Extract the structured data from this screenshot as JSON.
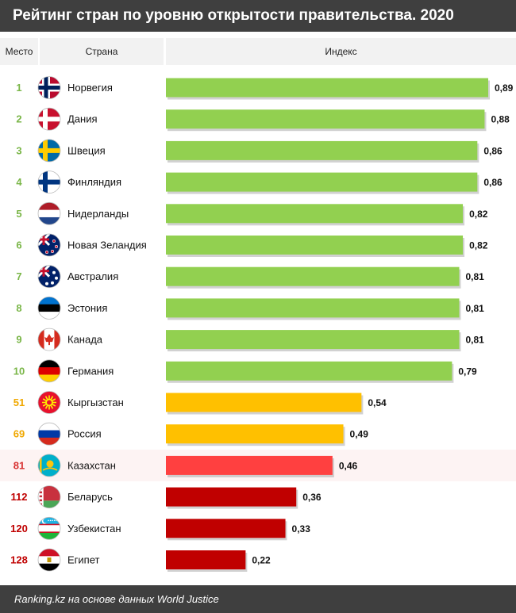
{
  "title": "Рейтинг стран по уровню открытости правительства. 2020",
  "headers": {
    "rank": "Место",
    "country": "Страна",
    "index": "Индекс"
  },
  "footer": "Ranking.kz на основе данных World Justice",
  "colors": {
    "top10": "#92d050",
    "neighbors": "#ffc000",
    "kazakhstan": "#ff4040",
    "low": "#c00000",
    "highlight_row": "#fdf3f3"
  },
  "chart_data": {
    "type": "bar",
    "orientation": "horizontal",
    "xlim": [
      0,
      0.89
    ],
    "grid": false,
    "rows": [
      {
        "rank": "1",
        "country": "Норвегия",
        "value": 0.89,
        "label": "0,89",
        "flag": "norway-flag-icon",
        "group": "top10"
      },
      {
        "rank": "2",
        "country": "Дания",
        "value": 0.88,
        "label": "0,88",
        "flag": "denmark-flag-icon",
        "group": "top10"
      },
      {
        "rank": "3",
        "country": "Швеция",
        "value": 0.86,
        "label": "0,86",
        "flag": "sweden-flag-icon",
        "group": "top10"
      },
      {
        "rank": "4",
        "country": "Финляндия",
        "value": 0.86,
        "label": "0,86",
        "flag": "finland-flag-icon",
        "group": "top10"
      },
      {
        "rank": "5",
        "country": "Нидерланды",
        "value": 0.82,
        "label": "0,82",
        "flag": "netherlands-flag-icon",
        "group": "top10"
      },
      {
        "rank": "6",
        "country": "Новая Зеландия",
        "value": 0.82,
        "label": "0,82",
        "flag": "new-zealand-flag-icon",
        "group": "top10"
      },
      {
        "rank": "7",
        "country": "Австралия",
        "value": 0.81,
        "label": "0,81",
        "flag": "australia-flag-icon",
        "group": "top10"
      },
      {
        "rank": "8",
        "country": "Эстония",
        "value": 0.81,
        "label": "0,81",
        "flag": "estonia-flag-icon",
        "group": "top10"
      },
      {
        "rank": "9",
        "country": "Канада",
        "value": 0.81,
        "label": "0,81",
        "flag": "canada-flag-icon",
        "group": "top10"
      },
      {
        "rank": "10",
        "country": "Германия",
        "value": 0.79,
        "label": "0,79",
        "flag": "germany-flag-icon",
        "group": "top10"
      },
      {
        "rank": "51",
        "country": "Кыргызстан",
        "value": 0.54,
        "label": "0,54",
        "flag": "kyrgyzstan-flag-icon",
        "group": "neighbors"
      },
      {
        "rank": "69",
        "country": "Россия",
        "value": 0.49,
        "label": "0,49",
        "flag": "russia-flag-icon",
        "group": "neighbors"
      },
      {
        "rank": "81",
        "country": "Казахстан",
        "value": 0.46,
        "label": "0,46",
        "flag": "kazakhstan-flag-icon",
        "group": "kazakhstan"
      },
      {
        "rank": "112",
        "country": "Беларусь",
        "value": 0.36,
        "label": "0,36",
        "flag": "belarus-flag-icon",
        "group": "low"
      },
      {
        "rank": "120",
        "country": "Узбекистан",
        "value": 0.33,
        "label": "0,33",
        "flag": "uzbekistan-flag-icon",
        "group": "low"
      },
      {
        "rank": "128",
        "country": "Египет",
        "value": 0.22,
        "label": "0,22",
        "flag": "egypt-flag-icon",
        "group": "low"
      }
    ]
  }
}
